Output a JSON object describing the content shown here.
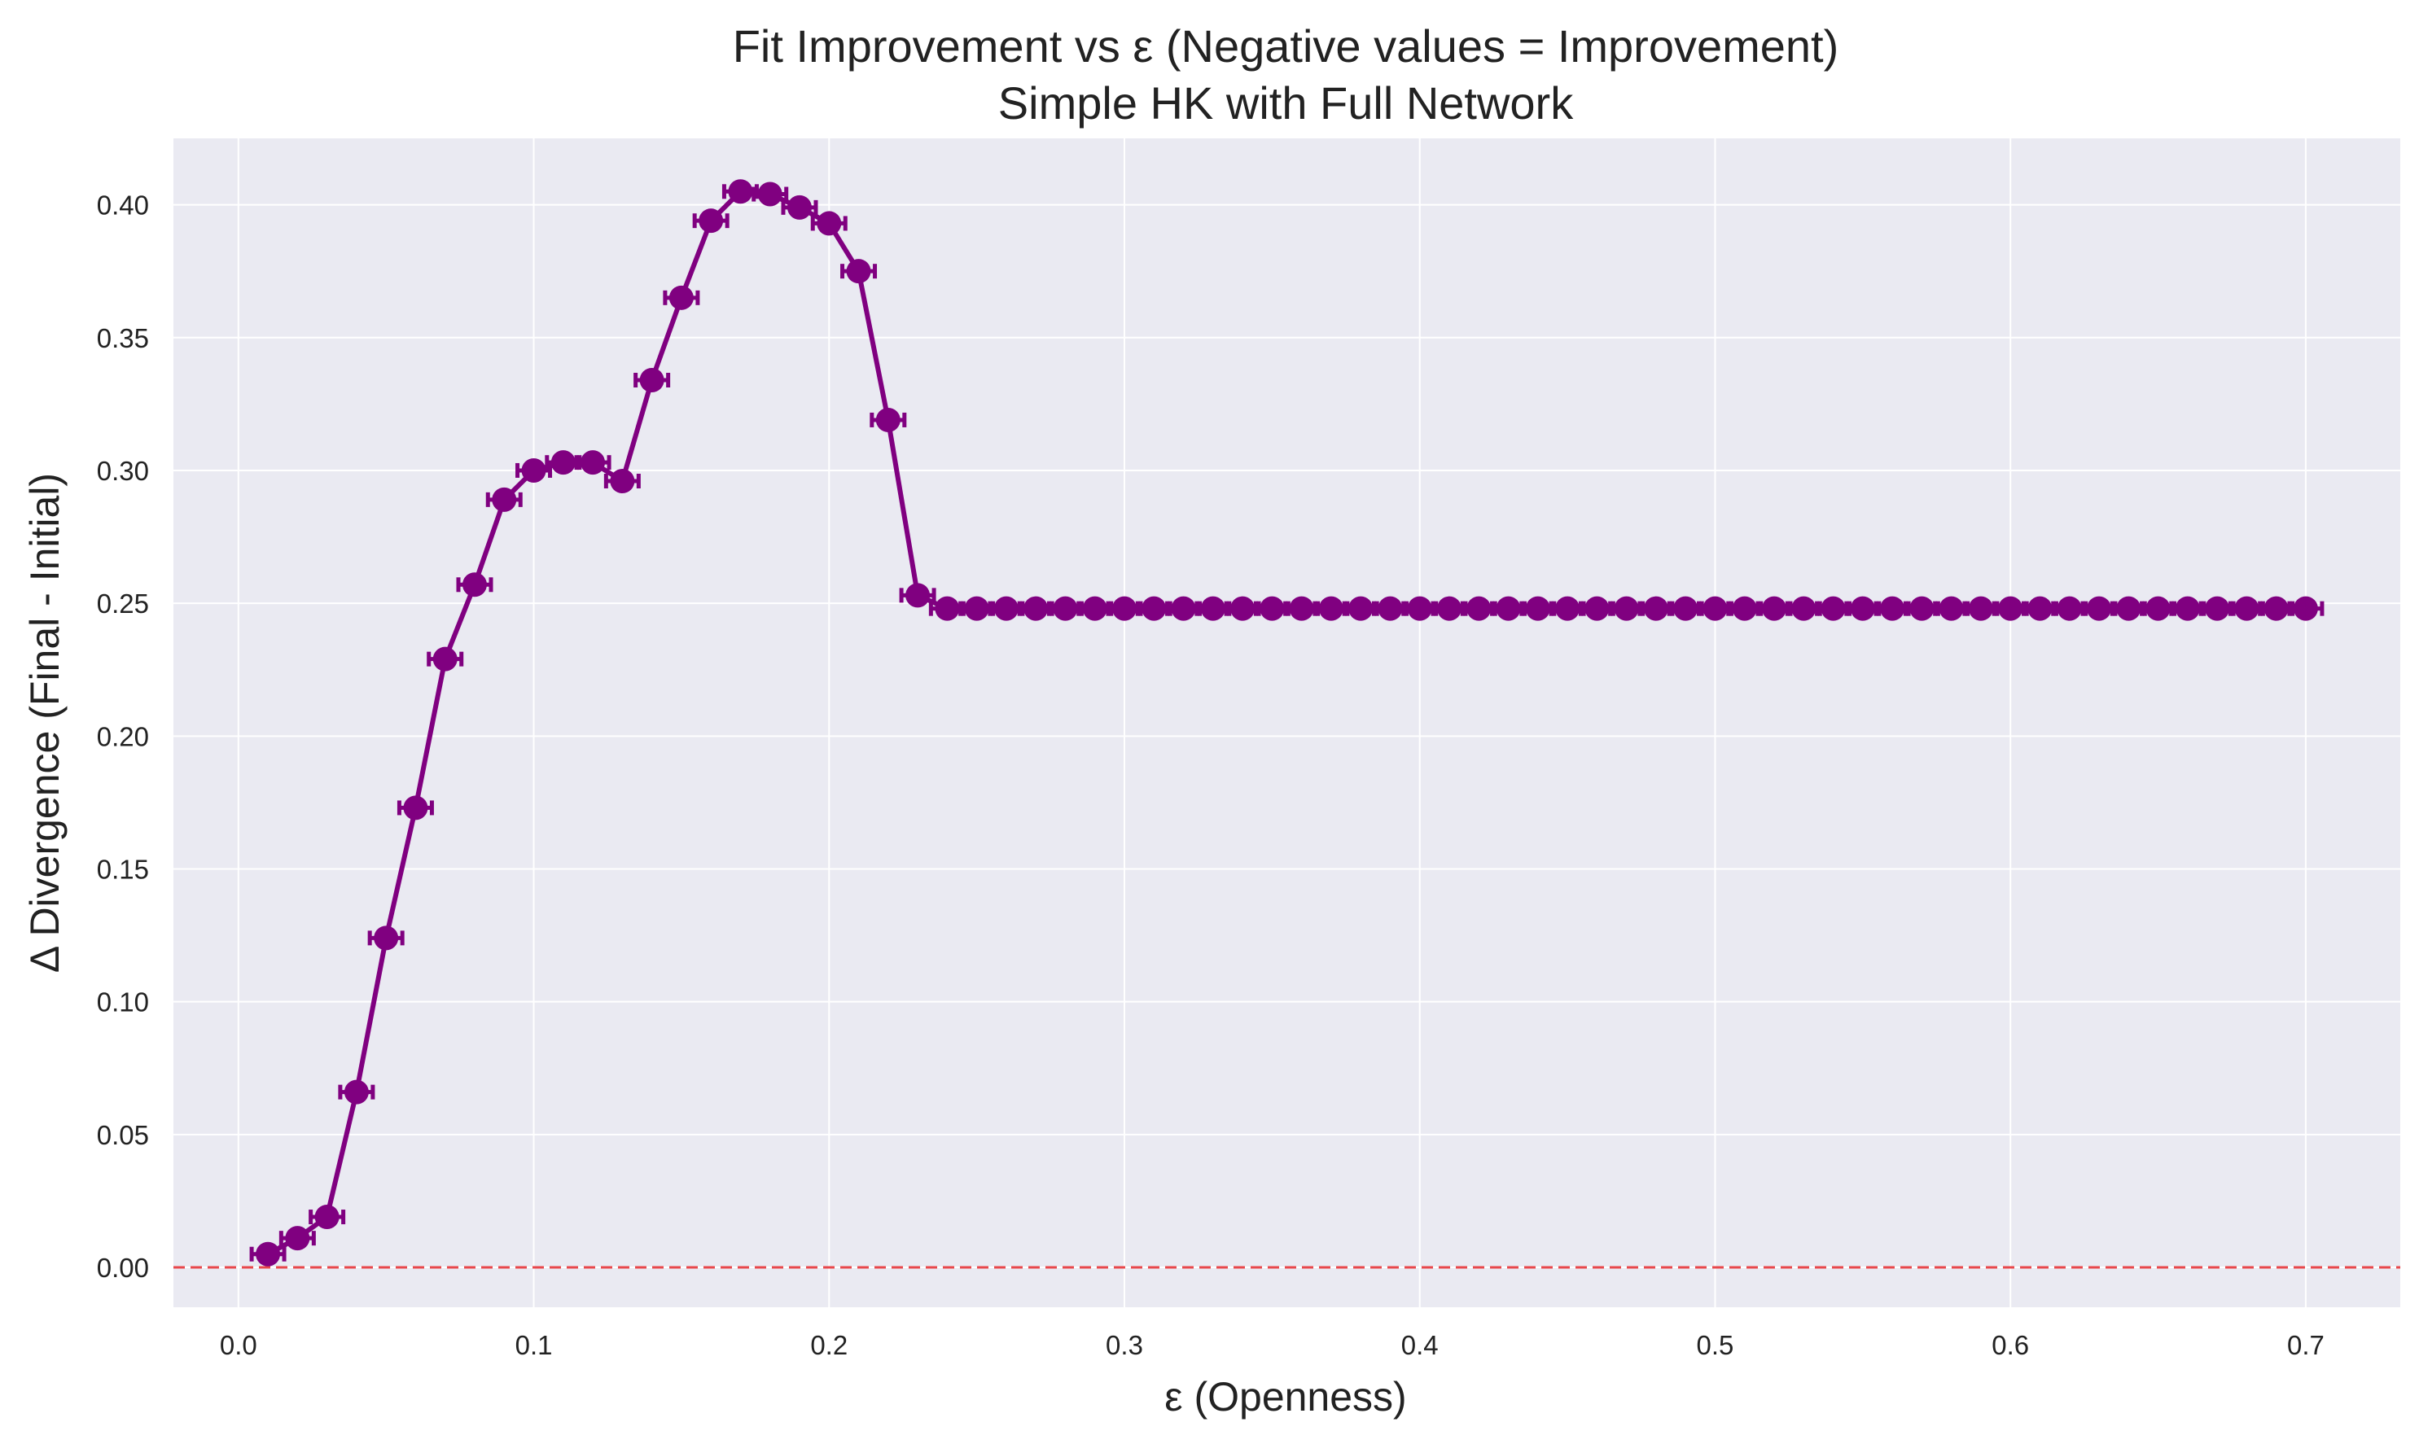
{
  "chart_data": {
    "type": "line",
    "title": "Fit Improvement vs ε (Negative values = Improvement)",
    "subtitle": "Simple HK with Full Network",
    "xlabel": "ε (Openness)",
    "ylabel": "Δ Divergence (Final - Initial)",
    "xlim": [
      -0.022,
      0.732
    ],
    "ylim": [
      -0.015,
      0.425
    ],
    "xticks": [
      0.0,
      0.1,
      0.2,
      0.3,
      0.4,
      0.5,
      0.6,
      0.7
    ],
    "xtick_labels": [
      "0.0",
      "0.1",
      "0.2",
      "0.3",
      "0.4",
      "0.5",
      "0.6",
      "0.7"
    ],
    "yticks": [
      0.0,
      0.05,
      0.1,
      0.15,
      0.2,
      0.25,
      0.3,
      0.35,
      0.4
    ],
    "ytick_labels": [
      "0.00",
      "0.05",
      "0.10",
      "0.15",
      "0.20",
      "0.25",
      "0.30",
      "0.35",
      "0.40"
    ],
    "grid": true,
    "legend": "none",
    "reference_line": {
      "y": 0,
      "style": "dashed",
      "color": "#e8474b"
    },
    "colors": {
      "series": "#800080",
      "background": "#eaeaf2",
      "grid": "#ffffff",
      "reference": "#e8474b"
    },
    "series": [
      {
        "x": [
          0.01,
          0.02,
          0.03,
          0.04,
          0.05,
          0.06,
          0.07,
          0.08,
          0.09,
          0.1,
          0.11,
          0.12,
          0.13,
          0.14,
          0.15,
          0.16,
          0.17,
          0.18,
          0.19,
          0.2,
          0.21,
          0.22,
          0.23,
          0.24,
          0.25,
          0.26,
          0.27,
          0.28,
          0.29,
          0.3,
          0.31,
          0.32,
          0.33,
          0.34,
          0.35,
          0.36,
          0.37,
          0.38,
          0.39,
          0.4,
          0.41,
          0.42,
          0.43,
          0.44,
          0.45,
          0.46,
          0.47,
          0.48,
          0.49,
          0.5,
          0.51,
          0.52,
          0.53,
          0.54,
          0.55,
          0.56,
          0.57,
          0.58,
          0.59,
          0.6,
          0.61,
          0.62,
          0.63,
          0.64,
          0.65,
          0.66,
          0.67,
          0.68,
          0.69,
          0.7
        ],
        "y": [
          0.005,
          0.011,
          0.019,
          0.066,
          0.124,
          0.173,
          0.229,
          0.257,
          0.289,
          0.3,
          0.303,
          0.303,
          0.296,
          0.334,
          0.365,
          0.394,
          0.405,
          0.404,
          0.399,
          0.393,
          0.375,
          0.319,
          0.253,
          0.248,
          0.248,
          0.248,
          0.248,
          0.248,
          0.248,
          0.248,
          0.248,
          0.248,
          0.248,
          0.248,
          0.248,
          0.248,
          0.248,
          0.248,
          0.248,
          0.248,
          0.248,
          0.248,
          0.248,
          0.248,
          0.248,
          0.248,
          0.248,
          0.248,
          0.248,
          0.248,
          0.248,
          0.248,
          0.248,
          0.248,
          0.248,
          0.248,
          0.248,
          0.248,
          0.248,
          0.248,
          0.248,
          0.248,
          0.248,
          0.248,
          0.248,
          0.248,
          0.248,
          0.248,
          0.248,
          0.248
        ]
      }
    ]
  }
}
